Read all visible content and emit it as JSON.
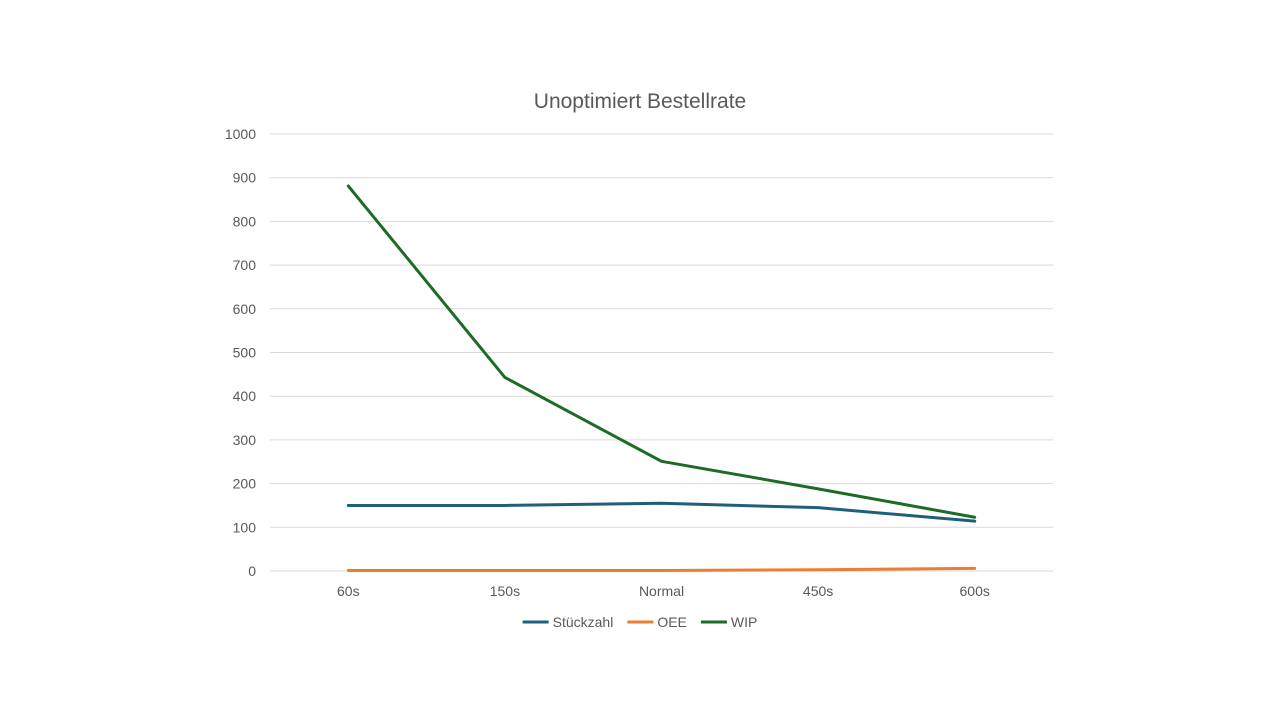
{
  "chart_data": {
    "type": "line",
    "title": "Unoptimiert Bestellrate",
    "xlabel": "",
    "ylabel": "",
    "categories": [
      "60s",
      "150s",
      "Normal",
      "450s",
      "600s"
    ],
    "ylim": [
      0,
      1000
    ],
    "yticks": [
      0,
      100,
      200,
      300,
      400,
      500,
      600,
      700,
      800,
      900,
      1000
    ],
    "grid": true,
    "legend_position": "bottom",
    "series": [
      {
        "name": "Stückzahl",
        "color": "#1f5f7a",
        "values": [
          150,
          150,
          155,
          145,
          114
        ]
      },
      {
        "name": "OEE",
        "color": "#ed7d31",
        "values": [
          1,
          1,
          1,
          3,
          6
        ]
      },
      {
        "name": "WIP",
        "color": "#1e6b26",
        "values": [
          881,
          443,
          251,
          188,
          123
        ]
      }
    ]
  }
}
